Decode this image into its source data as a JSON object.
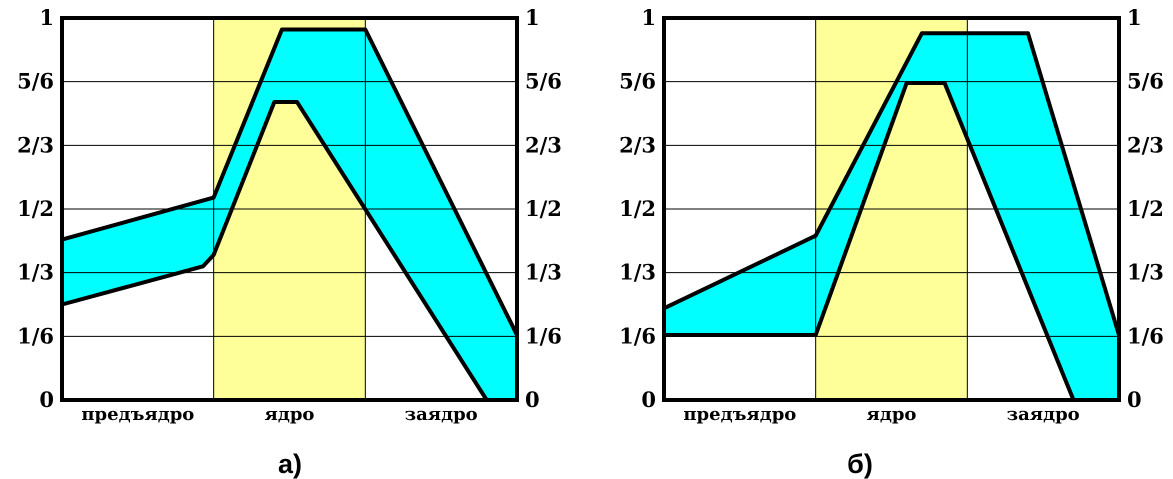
{
  "chart_data": [
    {
      "type": "area",
      "caption": "а)",
      "categories": [
        "предъядро",
        "ядро",
        "заядро"
      ],
      "y_ticks": [
        "0",
        "1/6",
        "1/3",
        "1/2",
        "2/3",
        "5/6",
        "1"
      ],
      "ylim": [
        0,
        1
      ],
      "xlim": [
        0,
        3
      ],
      "grid": true,
      "highlight_band": {
        "from": 1,
        "to": 2,
        "color": "#ffff99",
        "label": "ядро"
      },
      "fill_color": "#00ffff",
      "series": [
        {
          "values": [
            [
              0,
              0.42
            ],
            [
              1,
              0.53
            ],
            [
              1.45,
              0.97
            ],
            [
              2,
              0.97
            ],
            [
              3,
              0.17
            ]
          ]
        },
        {
          "values": [
            [
              0,
              0.25
            ],
            [
              0.93,
              0.35
            ],
            [
              1,
              0.38
            ],
            [
              1.4,
              0.78
            ],
            [
              1.55,
              0.78
            ],
            [
              2.8,
              0.0
            ]
          ]
        }
      ]
    },
    {
      "type": "area",
      "caption": "б)",
      "categories": [
        "предъядро",
        "ядро",
        "заядро"
      ],
      "y_ticks": [
        "0",
        "1/6",
        "1/3",
        "1/2",
        "2/3",
        "5/6",
        "1"
      ],
      "ylim": [
        0,
        1
      ],
      "xlim": [
        0,
        3
      ],
      "grid": true,
      "highlight_band": {
        "from": 1,
        "to": 2,
        "color": "#ffff99",
        "label": "ядро"
      },
      "fill_color": "#00ffff",
      "series": [
        {
          "values": [
            [
              0,
              0.24
            ],
            [
              1,
              0.43
            ],
            [
              1.7,
              0.96
            ],
            [
              2.4,
              0.96
            ],
            [
              3,
              0.17
            ]
          ]
        },
        {
          "values": [
            [
              0,
              0.17
            ],
            [
              1,
              0.17
            ],
            [
              1.6,
              0.83
            ],
            [
              1.85,
              0.83
            ],
            [
              2.7,
              0.0
            ]
          ]
        }
      ]
    }
  ]
}
